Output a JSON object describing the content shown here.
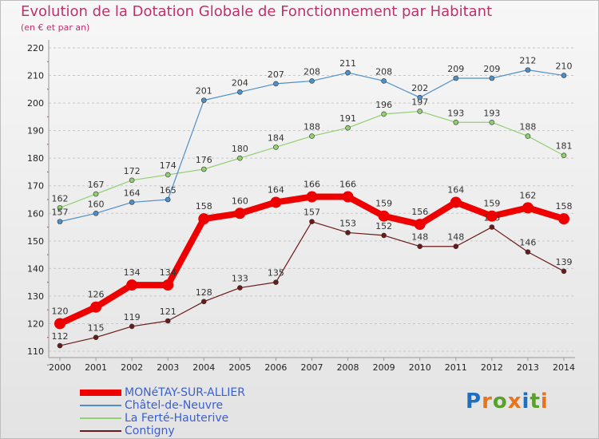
{
  "chart_data": {
    "type": "line",
    "title": "Evolution de la Dotation Globale de Fonctionnement par Habitant",
    "subtitle": "(en € et par an)",
    "x": [
      "2000",
      "2001",
      "2002",
      "2003",
      "2004",
      "2005",
      "2006",
      "2007",
      "2008",
      "2009",
      "2010",
      "2011",
      "2012",
      "2013",
      "2014"
    ],
    "ylim": [
      110,
      220
    ],
    "yticks": [
      110,
      120,
      130,
      140,
      150,
      160,
      170,
      180,
      190,
      200,
      210,
      220
    ],
    "grid": "horizontal dashed",
    "series": [
      {
        "name": "Contigny",
        "color": "#6b1a1a",
        "values": [
          112,
          115,
          119,
          121,
          128,
          133,
          135,
          157,
          153,
          152,
          148,
          148,
          155,
          146,
          139
        ]
      },
      {
        "name": "La Ferté-Hauterive",
        "color": "#90d070",
        "values": [
          162,
          167,
          172,
          174,
          176,
          180,
          184,
          188,
          191,
          196,
          197,
          193,
          193,
          188,
          181
        ]
      },
      {
        "name": "Châtel-de-Neuvre",
        "color": "#5090c8",
        "values": [
          157,
          160,
          164,
          165,
          201,
          204,
          207,
          208,
          211,
          208,
          202,
          209,
          209,
          212,
          210
        ]
      },
      {
        "name": "MONéTAY-SUR-ALLIER",
        "color": "#ee0000",
        "values": [
          120,
          126,
          134,
          134,
          158,
          160,
          164,
          166,
          166,
          159,
          156,
          164,
          159,
          162,
          158
        ]
      }
    ],
    "legend_order": [
      "MONéTAY-SUR-ALLIER",
      "Châtel-de-Neuvre",
      "La Ferté-Hauterive",
      "Contigny"
    ]
  },
  "logo": {
    "text": "Proxiti",
    "letters": [
      "P",
      "r",
      "o",
      "x",
      "i",
      "t",
      "i"
    ],
    "colors": [
      "#1f6fc0",
      "#e8741c",
      "#5aa02c",
      "#e8741c",
      "#1f6fc0",
      "#5aa02c",
      "#e8741c"
    ]
  }
}
